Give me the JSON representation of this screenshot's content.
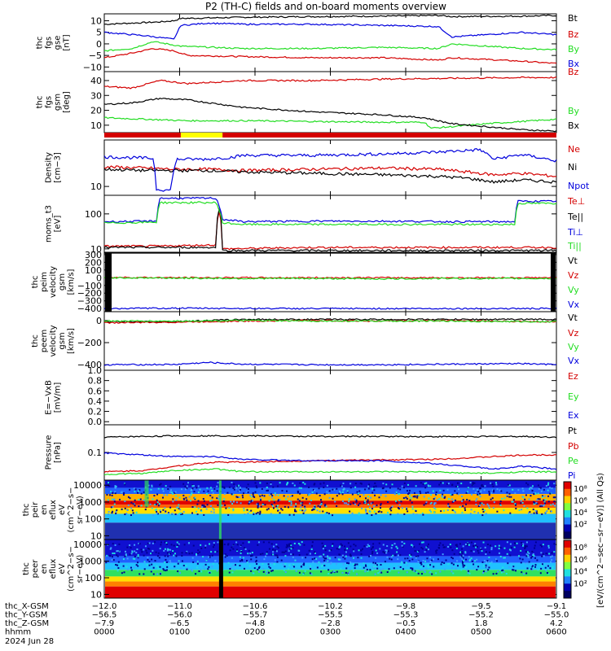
{
  "title": "P2 (TH-C) fields and on-board moments overview",
  "colors": {
    "black": "#000000",
    "red": "#d40000",
    "green": "#22dd22",
    "blue": "#0000dd",
    "yellow": "#ffff00"
  },
  "chart_data": [
    {
      "type": "line",
      "id": "fgs_gse",
      "ylabel": [
        "thc",
        "fgs",
        "gse",
        "[nT]"
      ],
      "ylim": [
        -12,
        13
      ],
      "yticks": [
        -10,
        -5,
        0,
        5,
        10
      ],
      "tick_labels": [
        "−10",
        "−5",
        "0",
        "5",
        "10"
      ],
      "series": [
        {
          "name": "Bt",
          "color": "#000000",
          "x": [
            0,
            40,
            80,
            100,
            110,
            200,
            300,
            400,
            480,
            500,
            600,
            650
          ],
          "values": [
            8.5,
            9,
            9.5,
            10,
            11,
            11.5,
            11.8,
            12,
            12.3,
            11.8,
            12,
            12.3
          ]
        },
        {
          "name": "Bz",
          "color": "#d40000",
          "x": [
            0,
            40,
            70,
            100,
            120,
            200,
            300,
            400,
            480,
            500,
            600,
            650
          ],
          "values": [
            -6,
            -4,
            -2,
            -3,
            -5,
            -5.5,
            -6,
            -6,
            -7,
            -6,
            -7.5,
            -8.5
          ]
        },
        {
          "name": "By",
          "color": "#22dd22",
          "x": [
            0,
            40,
            70,
            90,
            110,
            200,
            300,
            400,
            480,
            500,
            600,
            650
          ],
          "values": [
            -3,
            -2,
            1,
            0,
            -1,
            -2,
            -2,
            -1.5,
            -2,
            0,
            -2,
            -2.5
          ]
        },
        {
          "name": "Bx",
          "color": "#0000dd",
          "x": [
            0,
            60,
            100,
            110,
            150,
            200,
            300,
            400,
            480,
            500,
            600,
            650
          ],
          "values": [
            5,
            3.5,
            2,
            8,
            9,
            8.5,
            8.5,
            8,
            7.5,
            3,
            5,
            4
          ]
        }
      ]
    },
    {
      "type": "line",
      "id": "fgs_gsm_deg",
      "ylabel": [
        "thc",
        "fgs",
        "gsm",
        "[deg]"
      ],
      "ylim": [
        5,
        46
      ],
      "yticks": [
        10,
        20,
        30,
        40
      ],
      "tick_labels": [
        "10",
        "20",
        "30",
        "40"
      ],
      "series": [
        {
          "name": "Bz",
          "color": "#d40000",
          "x": [
            0,
            40,
            80,
            120,
            200,
            300,
            400,
            500,
            600,
            650
          ],
          "values": [
            36,
            35,
            40,
            38,
            40,
            40,
            41,
            41.5,
            42,
            42
          ]
        },
        {
          "name": "By",
          "color": "#22dd22",
          "x": [
            0,
            60,
            120,
            200,
            300,
            400,
            460,
            470,
            500,
            550,
            600,
            650
          ],
          "values": [
            15,
            14,
            13,
            13,
            12.5,
            12,
            12,
            8,
            9,
            11,
            12.5,
            14
          ]
        },
        {
          "name": "Bx",
          "color": "#000000",
          "x": [
            0,
            40,
            80,
            120,
            200,
            300,
            400,
            460,
            500,
            550,
            600,
            650
          ],
          "values": [
            24,
            25,
            28,
            27,
            22,
            19,
            17,
            15,
            11,
            9,
            7,
            6
          ]
        }
      ]
    },
    {
      "type": "line",
      "id": "density",
      "ylabel": [
        "Density",
        "[cm−3]"
      ],
      "ylog": true,
      "ylim": [
        7,
        65
      ],
      "yticks": [
        10
      ],
      "tick_labels": [
        "10"
      ],
      "series": [
        {
          "name": "Ne",
          "color": "#d40000",
          "x": [
            0,
            60,
            100,
            150,
            200,
            300,
            400,
            480,
            520,
            560,
            600,
            650
          ],
          "values": [
            22,
            21,
            20,
            20,
            19,
            20,
            21,
            20,
            18,
            16,
            17,
            15
          ]
        },
        {
          "name": "Ni",
          "color": "#000000",
          "x": [
            0,
            60,
            100,
            150,
            200,
            300,
            400,
            480,
            520,
            560,
            600,
            650
          ],
          "values": [
            20,
            19,
            19,
            19,
            18,
            17,
            16,
            15,
            14,
            12,
            13,
            12
          ]
        },
        {
          "name": "Npot",
          "color": "#0000dd",
          "x": [
            0,
            70,
            75,
            95,
            105,
            150,
            160,
            180,
            200,
            300,
            400,
            480,
            540,
            560,
            600,
            650
          ],
          "values": [
            33,
            31,
            9,
            8.5,
            30,
            30,
            31,
            32,
            35,
            35,
            37,
            40,
            44,
            30,
            36,
            28
          ]
        }
      ]
    },
    {
      "type": "line",
      "id": "moms_t3",
      "ylabel": [
        "moms_t3",
        "[eV]"
      ],
      "ylog": true,
      "ylim": [
        8,
        340
      ],
      "yticks": [
        10,
        100
      ],
      "tick_labels": [
        "10",
        "100"
      ],
      "series": [
        {
          "name": "Te⊥",
          "color": "#d40000",
          "x": [
            0,
            80,
            160,
            165,
            170,
            300,
            400,
            500,
            600,
            650
          ],
          "values": [
            12,
            12,
            13,
            120,
            10,
            11,
            11,
            11,
            11,
            11
          ]
        },
        {
          "name": "Te||",
          "color": "#000000",
          "x": [
            0,
            160,
            166,
            170,
            650
          ],
          "values": [
            11,
            11,
            160,
            9,
            9
          ]
        },
        {
          "name": "Ti⊥",
          "color": "#0000dd",
          "x": [
            0,
            75,
            80,
            160,
            170,
            200,
            300,
            400,
            500,
            590,
            595,
            650
          ],
          "values": [
            60,
            62,
            280,
            280,
            70,
            60,
            62,
            62,
            60,
            60,
            230,
            230
          ]
        },
        {
          "name": "Ti||",
          "color": "#22dd22",
          "x": [
            0,
            75,
            80,
            160,
            170,
            200,
            300,
            400,
            500,
            590,
            595,
            650
          ],
          "values": [
            55,
            58,
            210,
            210,
            55,
            50,
            50,
            50,
            50,
            50,
            200,
            200
          ]
        }
      ]
    },
    {
      "type": "line",
      "id": "peim_velocity",
      "ylabel": [
        "thc",
        "peim",
        "velocity",
        "gsm",
        "[km/s]"
      ],
      "ylim": [
        -440,
        330
      ],
      "yticks": [
        -400,
        -300,
        -200,
        -100,
        0,
        100,
        200,
        300
      ],
      "tick_labels": [
        "−400",
        "−300",
        "−200",
        "−100",
        "0",
        "100",
        "200",
        "300"
      ],
      "series": [
        {
          "name": "Vt",
          "color": "#000000",
          "x": [
            0,
            100,
            200,
            300,
            400,
            500,
            600,
            650
          ],
          "values": [
            410,
            410,
            412,
            410,
            405,
            410,
            410,
            410
          ]
        },
        {
          "name": "Vz",
          "color": "#d40000",
          "x": [
            0,
            100,
            200,
            300,
            400,
            500,
            600,
            650
          ],
          "values": [
            5,
            0,
            0,
            0,
            0,
            0,
            0,
            0
          ]
        },
        {
          "name": "Vy",
          "color": "#22dd22",
          "x": [
            0,
            100,
            200,
            300,
            400,
            500,
            600,
            650
          ],
          "values": [
            0,
            -5,
            -10,
            -10,
            -15,
            -10,
            -10,
            -10
          ]
        },
        {
          "name": "Vx",
          "color": "#0000dd",
          "x": [
            0,
            100,
            200,
            300,
            400,
            500,
            600,
            650
          ],
          "values": [
            -400,
            -395,
            -398,
            -400,
            -400,
            -400,
            -400,
            -400
          ]
        }
      ]
    },
    {
      "type": "line",
      "id": "peem_velocity",
      "ylabel": [
        "thc",
        "peem",
        "velocity",
        "gsm",
        "[km/s]"
      ],
      "ylim": [
        -450,
        80
      ],
      "yticks": [
        -400,
        -200,
        0
      ],
      "tick_labels": [
        "−400",
        "−200",
        "0"
      ],
      "series": [
        {
          "name": "Vt",
          "color": "#000000",
          "x": [
            0,
            100,
            150,
            200,
            300,
            400,
            500,
            600,
            650
          ],
          "values": [
            -10,
            -10,
            0,
            10,
            10,
            10,
            10,
            10,
            10
          ]
        },
        {
          "name": "Vz",
          "color": "#d40000",
          "x": [
            0,
            100,
            200,
            300,
            400,
            500,
            600,
            650
          ],
          "values": [
            -20,
            -15,
            -5,
            0,
            -5,
            0,
            -10,
            -10
          ]
        },
        {
          "name": "Vy",
          "color": "#22dd22",
          "x": [
            0,
            100,
            200,
            300,
            400,
            500,
            600,
            650
          ],
          "values": [
            -5,
            -5,
            0,
            -5,
            -5,
            -5,
            -10,
            -10
          ]
        },
        {
          "name": "Vx",
          "color": "#0000dd",
          "x": [
            0,
            100,
            150,
            200,
            300,
            400,
            500,
            600,
            650
          ],
          "values": [
            -400,
            -398,
            -380,
            -395,
            -400,
            -400,
            -395,
            -390,
            -400
          ]
        }
      ]
    },
    {
      "type": "line",
      "id": "efield",
      "ylabel": [
        "E=−VxB",
        "[mV/m]"
      ],
      "ylim": [
        -0.06,
        1.0
      ],
      "yticks": [
        0.0,
        0.2,
        0.4,
        0.6,
        0.8,
        1.0
      ],
      "tick_labels": [
        "0.0",
        "0.2",
        "0.4",
        "0.6",
        "0.8",
        "1.0"
      ],
      "series": [
        {
          "name": "Ez",
          "color": "#d40000",
          "x": [],
          "values": []
        },
        {
          "name": "Ey",
          "color": "#22dd22",
          "x": [],
          "values": []
        },
        {
          "name": "Ex",
          "color": "#0000dd",
          "x": [],
          "values": []
        }
      ]
    },
    {
      "type": "line",
      "id": "pressure",
      "ylabel": [
        "Pressure",
        "[nPa]"
      ],
      "ylim": [
        0.0,
        0.2
      ],
      "yticks": [
        0.1
      ],
      "tick_labels": [
        "0.1"
      ],
      "series": [
        {
          "name": "Pt",
          "color": "#000000",
          "x": [
            0,
            100,
            200,
            300,
            400,
            500,
            600,
            650
          ],
          "values": [
            0.155,
            0.16,
            0.16,
            0.158,
            0.158,
            0.157,
            0.158,
            0.155
          ]
        },
        {
          "name": "Pb",
          "color": "#d40000",
          "x": [
            0,
            60,
            100,
            160,
            200,
            300,
            400,
            470,
            520,
            560,
            600,
            650
          ],
          "values": [
            0.03,
            0.035,
            0.05,
            0.065,
            0.065,
            0.07,
            0.073,
            0.075,
            0.08,
            0.085,
            0.09,
            0.092
          ]
        },
        {
          "name": "Pe",
          "color": "#22dd22",
          "x": [
            0,
            60,
            100,
            160,
            200,
            300,
            400,
            470,
            520,
            560,
            600,
            650
          ],
          "values": [
            0.02,
            0.025,
            0.035,
            0.04,
            0.03,
            0.03,
            0.03,
            0.03,
            0.025,
            0.025,
            0.03,
            0.03
          ]
        },
        {
          "name": "Pi",
          "color": "#0000dd",
          "x": [
            0,
            60,
            100,
            160,
            200,
            300,
            400,
            470,
            520,
            560,
            600,
            650
          ],
          "values": [
            0.098,
            0.09,
            0.085,
            0.085,
            0.075,
            0.07,
            0.07,
            0.06,
            0.05,
            0.04,
            0.05,
            0.04
          ]
        }
      ]
    },
    {
      "type": "heatmap",
      "id": "peir_spectrogram",
      "ylabel": [
        "thc",
        "peir",
        "en",
        "eflux",
        "eV",
        "(cm^2−s−",
        "sr−eV)"
      ],
      "ylog": true,
      "yticks": [
        10,
        100,
        1000,
        10000
      ],
      "tick_labels": [
        "10",
        "100",
        "1000",
        "10000"
      ]
    },
    {
      "type": "heatmap",
      "id": "peer_spectrogram",
      "ylabel": [
        "thc",
        "peer",
        "en",
        "eflux",
        "eV",
        "(cm^2−s−",
        "sr−eV)"
      ],
      "ylog": true,
      "yticks": [
        10,
        100,
        1000,
        10000
      ],
      "tick_labels": [
        "10",
        "100",
        "1000",
        "10000"
      ]
    }
  ],
  "colorbar": {
    "label": "[eV/(cm^2−sec−sr−eV)] (All Qs)",
    "ticks_upper": [
      "10⁸",
      "10⁶",
      "10⁴",
      "10²"
    ],
    "ticks_lower": [
      "10⁸",
      "10⁶",
      "10⁴",
      "10²"
    ]
  },
  "x_axis": {
    "rows": [
      {
        "label": "thc_X-GSM",
        "values": [
          "−12.0",
          "−11.0",
          "−10.6",
          "−10.2",
          "−9.8",
          "−9.5",
          "−9.1"
        ]
      },
      {
        "label": "thc_Y-GSM",
        "values": [
          "−56.5",
          "−56.0",
          "−55.7",
          "−55.5",
          "−55.3",
          "−55.2",
          "−55.0"
        ]
      },
      {
        "label": "thc_Z-GSM",
        "values": [
          "−7.9",
          "−6.5",
          "−4.8",
          "−2.8",
          "−0.5",
          "1.8",
          "4.2"
        ]
      },
      {
        "label": "hhmm",
        "values": [
          "0000",
          "0100",
          "0200",
          "0300",
          "0400",
          "0500",
          "0600"
        ]
      }
    ],
    "date": "2024 Jun 28"
  },
  "status_bar": {
    "segments": [
      {
        "from": 0,
        "to": 110,
        "color": "#d40000"
      },
      {
        "from": 110,
        "to": 170,
        "color": "#ffff00"
      },
      {
        "from": 170,
        "to": 650,
        "color": "#d40000"
      }
    ]
  }
}
